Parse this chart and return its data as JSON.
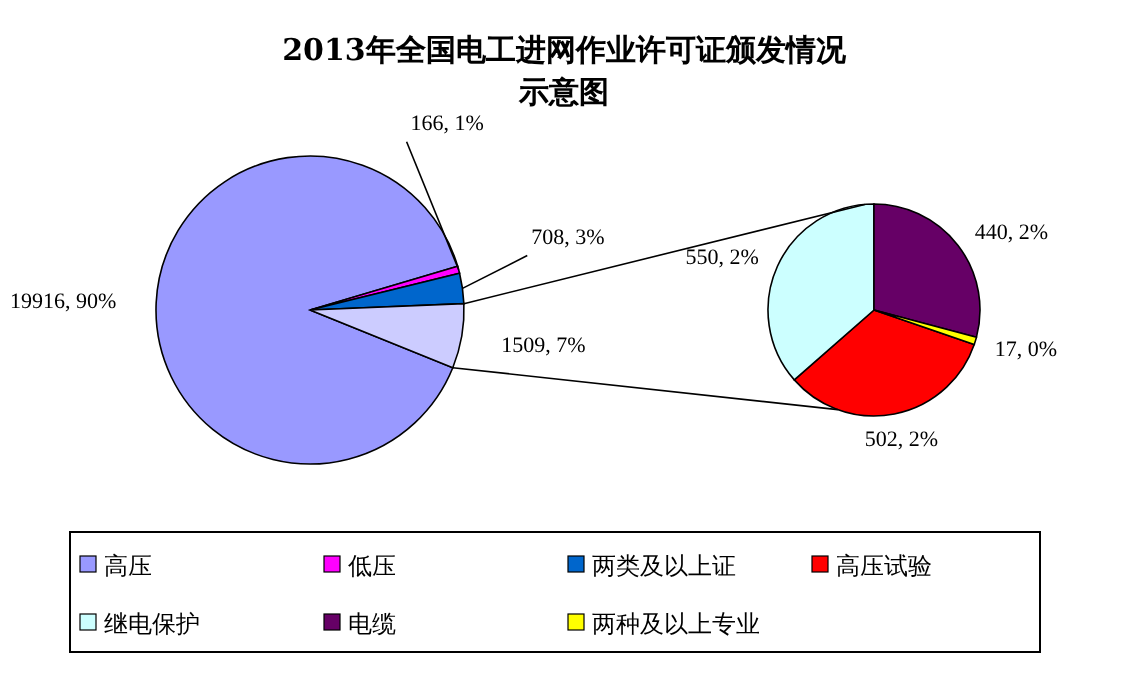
{
  "chart_data": [
    {
      "type": "pie",
      "title": "2013年全国电工进网作业许可证颁发情况示意图",
      "legend": "bottom",
      "categories": [
        "高压",
        "低压",
        "两类及以上证",
        null
      ],
      "values": [
        19916,
        166,
        708,
        1509
      ],
      "value_labels": [
        "19916, 90%",
        "166, 1%",
        "708, 3%",
        "1509, 7%"
      ],
      "colors": [
        "#9999ff",
        "#ff00ff",
        "#0066cc",
        "#ccccff"
      ]
    },
    {
      "type": "pie",
      "legend": "bottom",
      "categories": [
        "高压试验",
        "继电保护",
        "电缆",
        "两种及以上专业"
      ],
      "values": [
        502,
        550,
        440,
        17
      ],
      "value_labels": [
        "502, 2%",
        "550, 2%",
        "440, 2%",
        "17, 0%"
      ],
      "colors": [
        "#ff0000",
        "#ccffff",
        "#660066",
        "#ffff00"
      ]
    }
  ]
}
